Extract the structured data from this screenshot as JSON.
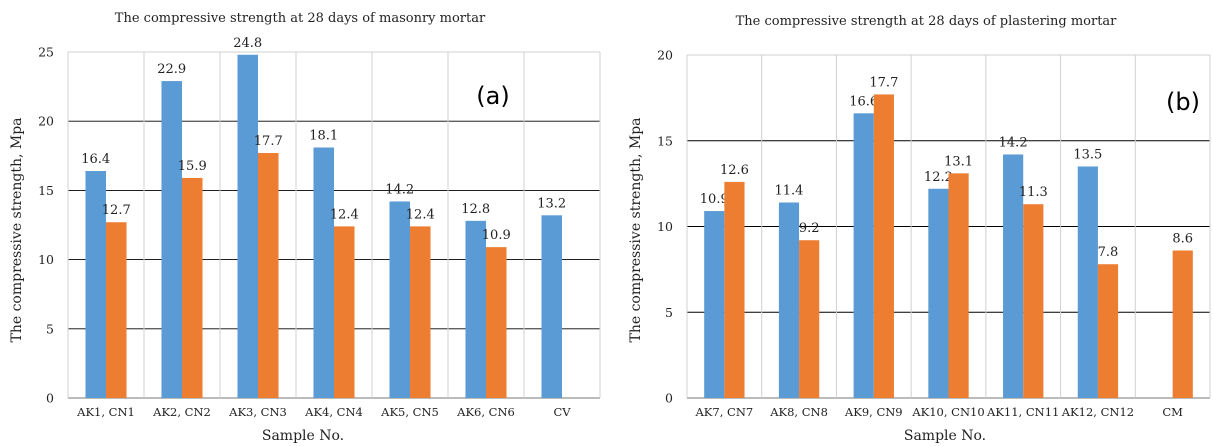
{
  "chart_data": [
    {
      "type": "bar",
      "title": "The compressive strength at 28 days of masonry mortar",
      "panel_label": "(a)",
      "xlabel": "Sample No.",
      "ylabel": "The compressive strength, Mpa",
      "ylim": [
        0,
        25
      ],
      "yticks": [
        "0",
        "5",
        "10",
        "15",
        "20",
        "25"
      ],
      "categories": [
        "AK1, CN1",
        "AK2, CN2",
        "AK3, CN3",
        "AK4, CN4",
        "AK5, CN5",
        "AK6, CN6",
        "CV"
      ],
      "series": [
        {
          "color": "#5b9bd5",
          "values": [
            16.4,
            22.9,
            24.8,
            18.1,
            14.2,
            12.8,
            13.2
          ]
        },
        {
          "color": "#ed7d31",
          "values": [
            12.7,
            15.9,
            17.7,
            12.4,
            12.4,
            10.9,
            null
          ]
        }
      ],
      "grid": "horizontal",
      "legend": "none"
    },
    {
      "type": "bar",
      "title": "The compressive strength at 28 days of plastering mortar",
      "panel_label": "(b)",
      "xlabel": "Sample No.",
      "ylabel": "The compressive strength, Mpa",
      "ylim": [
        0,
        20
      ],
      "yticks": [
        "0",
        "5",
        "10",
        "15",
        "20"
      ],
      "categories": [
        "AK7, CN7",
        "AK8, CN8",
        "AK9, CN9",
        "AK10, CN10",
        "AK11, CN11",
        "AK12, CN12",
        "CM"
      ],
      "series": [
        {
          "color": "#5b9bd5",
          "values": [
            10.9,
            11.4,
            16.6,
            12.2,
            14.2,
            13.5,
            null
          ]
        },
        {
          "color": "#ed7d31",
          "values": [
            12.6,
            9.2,
            17.7,
            13.1,
            11.3,
            7.8,
            8.6
          ]
        }
      ],
      "grid": "horizontal",
      "legend": "none"
    }
  ]
}
